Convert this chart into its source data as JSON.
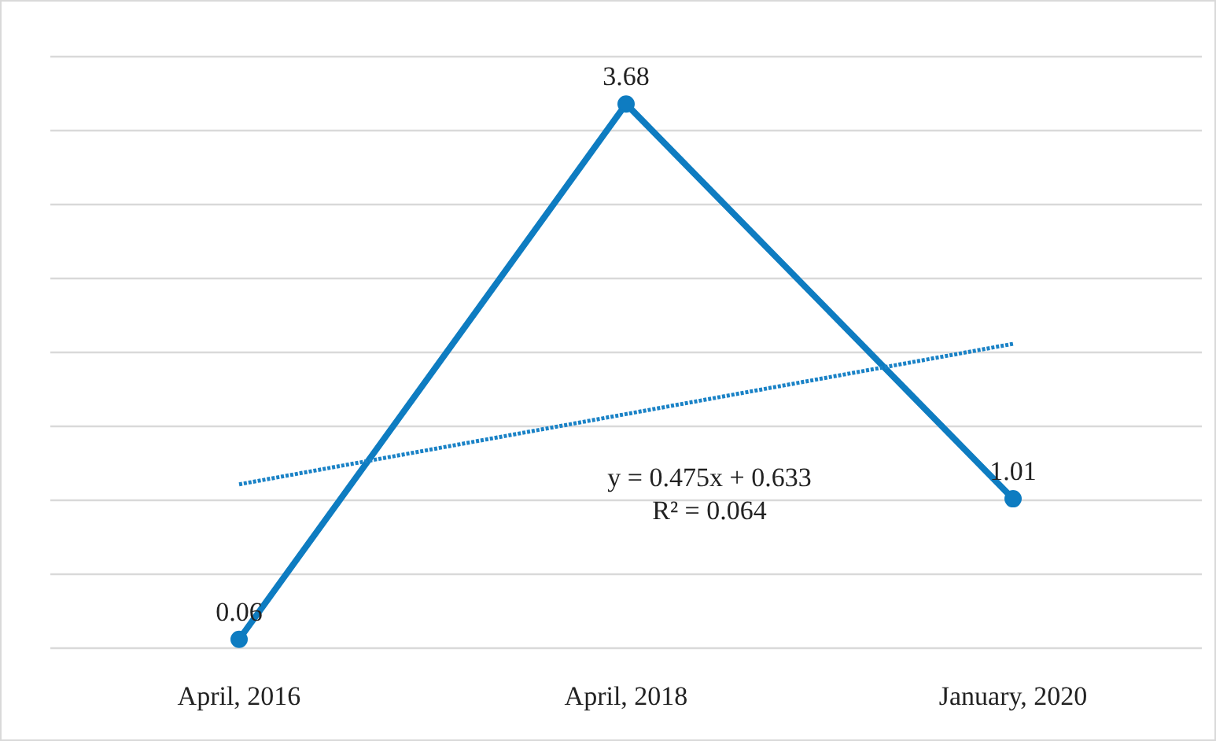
{
  "chart_data": {
    "type": "line",
    "categories": [
      "April, 2016",
      "April, 2018",
      "January, 2020"
    ],
    "series": [
      {
        "color": "#0e7cc1",
        "values": [
          0.06,
          3.68,
          1.01
        ],
        "marker": "circle",
        "data_labels": true
      },
      {
        "type": "line",
        "color": "#1a82c6",
        "values": [
          1.108,
          1.583,
          2.058
        ],
        "marker": "none",
        "line_style": "dotted"
      }
    ],
    "ylim": [
      0,
      4
    ],
    "grid": "y",
    "tick_labels": "x",
    "annotations": [
      "y = 0.475x + 0.633",
      "R² = 0.064"
    ]
  }
}
